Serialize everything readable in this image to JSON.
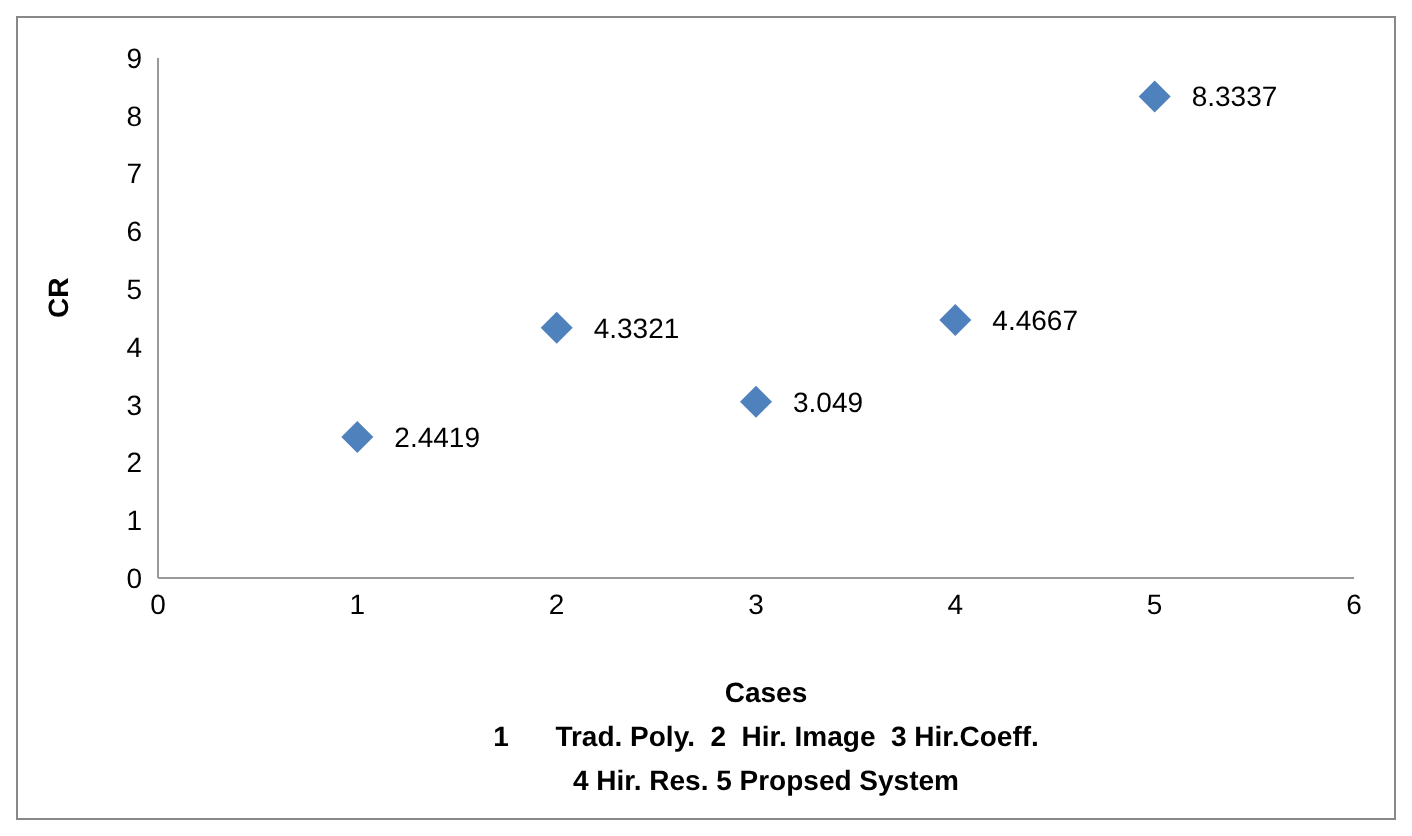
{
  "chart_data": {
    "type": "scatter",
    "xlabel": "Cases",
    "ylabel": "CR",
    "annotations": [
      "1      Trad. Poly.  2  Hir. Image  3 Hir.Coeff.",
      "4 Hir. Res. 5 Propsed System"
    ],
    "x": [
      1,
      2,
      3,
      4,
      5
    ],
    "values": [
      2.4419,
      4.3321,
      3.049,
      4.4667,
      8.3337
    ],
    "color": "#4f81bd",
    "xlim": [
      0,
      6
    ],
    "xticks": [
      0,
      1,
      2,
      3,
      4,
      5,
      6
    ],
    "ylim": [
      0,
      9
    ],
    "yticks": [
      0,
      1,
      2,
      3,
      4,
      5,
      6,
      7,
      8,
      9
    ],
    "marker": "diamond",
    "data_labels": true,
    "grid": false
  }
}
